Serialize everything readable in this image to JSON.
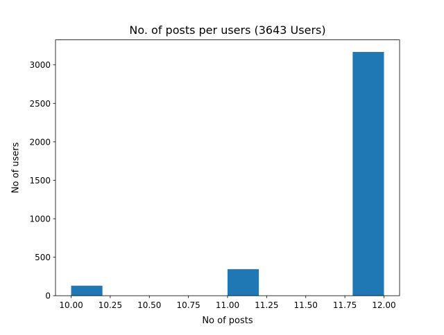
{
  "chart_data": {
    "type": "bar",
    "title": "No. of posts per users (3643 Users)",
    "xlabel": "No of posts",
    "ylabel": "No of users",
    "xlim": [
      9.9,
      12.1
    ],
    "ylim": [
      0,
      3325
    ],
    "xticks": [
      "10.00",
      "10.25",
      "10.50",
      "10.75",
      "11.00",
      "11.25",
      "11.50",
      "11.75",
      "12.00"
    ],
    "yticks": [
      "0",
      "500",
      "1000",
      "1500",
      "2000",
      "2500",
      "3000"
    ],
    "bins": [
      {
        "x0": 10.0,
        "x1": 10.2,
        "value": 130
      },
      {
        "x0": 11.0,
        "x1": 11.2,
        "value": 345
      },
      {
        "x0": 11.8,
        "x1": 12.0,
        "value": 3168
      }
    ],
    "bar_color": "#1f77b4",
    "grid": false,
    "legend": "none"
  }
}
